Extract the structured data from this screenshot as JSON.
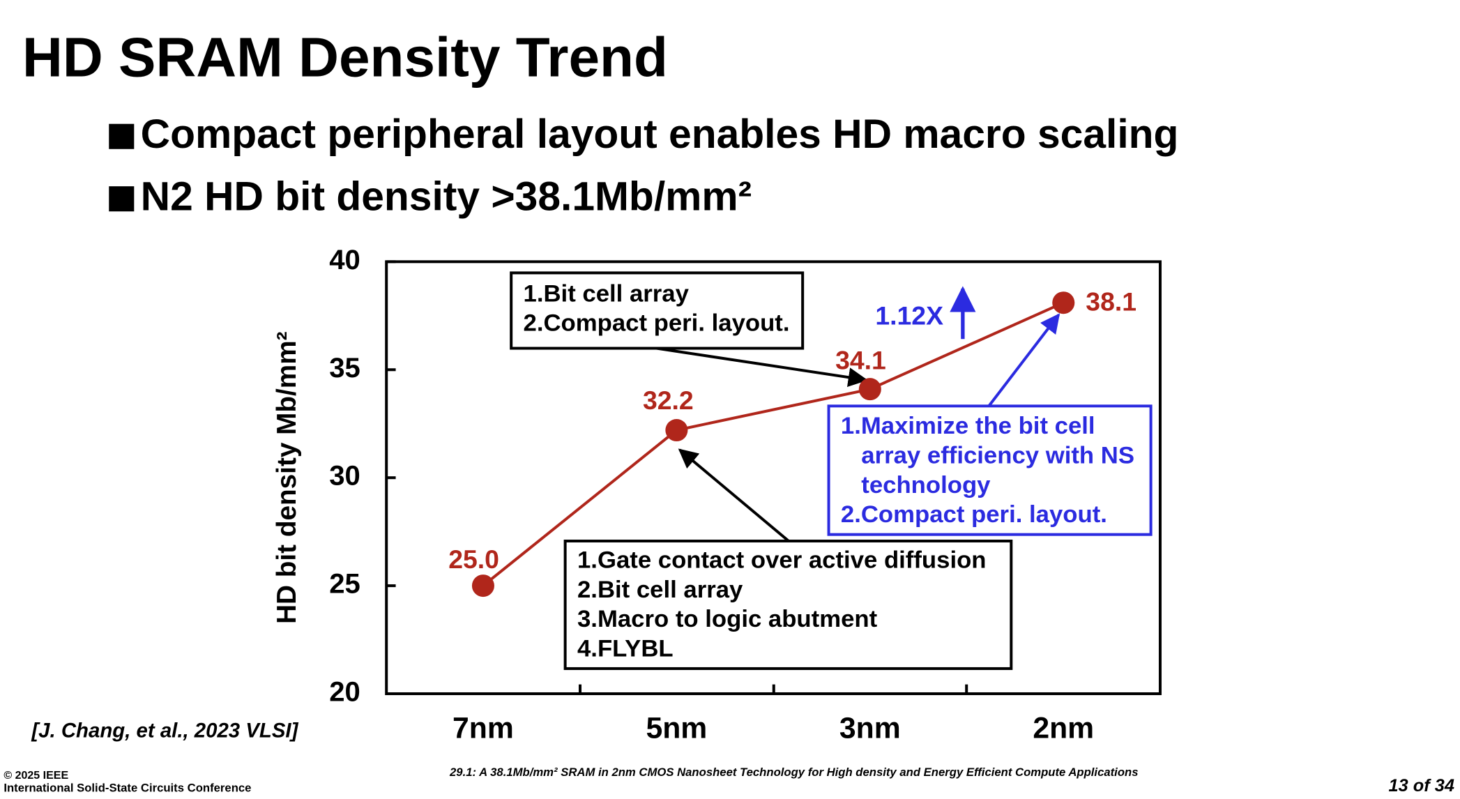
{
  "slide": {
    "title": "HD SRAM Density Trend",
    "bullets": [
      "Compact peripheral layout enables HD macro scaling",
      "N2 HD bit density >38.1Mb/mm²"
    ],
    "citation": "[J. Chang, et al., 2023 VLSI]",
    "copyright": "© 2025 IEEE",
    "conference": "International Solid-State Circuits Conference",
    "paper": "29.1: A 38.1Mb/mm² SRAM in 2nm CMOS Nanosheet Technology for High density and Energy Efficient Compute Applications",
    "page": "13 of 34"
  },
  "chart_data": {
    "type": "line",
    "y_label": "HD bit density Mb/mm²",
    "categories": [
      "7nm",
      "5nm",
      "3nm",
      "2nm"
    ],
    "values": [
      25.0,
      32.2,
      34.1,
      38.1
    ],
    "value_labels": [
      "25.0",
      "32.2",
      "34.1",
      "38.1"
    ],
    "color": "#b0261b",
    "ylim": [
      20,
      40
    ],
    "yticks": [
      20,
      25,
      30,
      35,
      40
    ],
    "annotations": [
      {
        "lines": [
          "1.Bit cell array",
          "2.Compact peri. layout."
        ],
        "color": "#000000"
      },
      {
        "lines": [
          "1.Maximize the bit cell",
          "array efficiency with NS",
          "technology",
          "2.Compact peri. layout."
        ],
        "color": "#2b2be0"
      },
      {
        "lines": [
          "1.Gate contact over active diffusion",
          "2.Bit cell array",
          "3.Macro to logic abutment",
          "4.FLYBL"
        ],
        "color": "#000000"
      },
      {
        "text": "1.12X",
        "color": "#2b2be0"
      }
    ]
  }
}
